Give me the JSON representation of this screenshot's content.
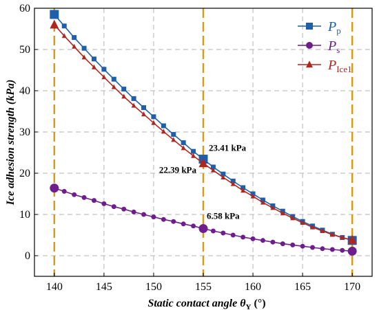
{
  "chart_data": {
    "type": "line",
    "xlabel": "Static contact angle θY (°)",
    "xlabel_parts": {
      "prefix": "Static contact angle ",
      "theta": "θ",
      "sub": "Y",
      "suffix": " (°)"
    },
    "ylabel": "Ice adhesion strength (kPa)",
    "xlim": [
      138,
      172
    ],
    "ylim": [
      -5,
      60
    ],
    "xticks": [
      140,
      145,
      150,
      155,
      160,
      165,
      170
    ],
    "yticks": [
      0,
      10,
      20,
      30,
      40,
      50,
      60
    ],
    "vlines": [
      140,
      155,
      170
    ],
    "grid": true,
    "legend_position": "top-right",
    "x": [
      140,
      141,
      142,
      143,
      144,
      145,
      146,
      147,
      148,
      149,
      150,
      151,
      152,
      153,
      154,
      155,
      156,
      157,
      158,
      159,
      160,
      161,
      162,
      163,
      164,
      165,
      166,
      167,
      168,
      169,
      170
    ],
    "series": [
      {
        "name": "Pp",
        "name_main": "P",
        "name_sub": "p",
        "color": "#1f5ea8",
        "marker": "square",
        "values": [
          58.5,
          55.7,
          52.9,
          50.3,
          47.7,
          45.2,
          42.8,
          40.4,
          38.1,
          35.9,
          33.7,
          31.5,
          29.4,
          27.4,
          25.3,
          23.41,
          21.5,
          19.8,
          18.1,
          16.5,
          15.0,
          13.5,
          12.1,
          10.8,
          9.5,
          8.3,
          7.2,
          6.2,
          5.2,
          4.4,
          3.7
        ]
      },
      {
        "name": "Ps",
        "name_main": "P",
        "name_sub": "s",
        "color": "#6e1e8c",
        "marker": "circle",
        "values": [
          16.4,
          15.6,
          14.8,
          14.1,
          13.4,
          12.6,
          11.9,
          11.3,
          10.6,
          10.0,
          9.4,
          8.8,
          8.3,
          7.7,
          7.2,
          6.58,
          6.0,
          5.5,
          5.0,
          4.5,
          4.1,
          3.7,
          3.3,
          2.9,
          2.6,
          2.3,
          2.0,
          1.7,
          1.5,
          1.3,
          1.1
        ]
      },
      {
        "name": "PIce1",
        "name_main": "P",
        "name_sub": "Ice1",
        "color": "#b0261e",
        "marker": "triangle",
        "values": [
          56.0,
          53.3,
          50.7,
          48.1,
          45.7,
          43.3,
          40.9,
          38.6,
          36.4,
          34.3,
          32.2,
          30.1,
          28.1,
          26.1,
          24.2,
          22.39,
          20.7,
          19.0,
          17.4,
          15.8,
          14.4,
          12.9,
          11.6,
          10.3,
          9.1,
          8.0,
          6.9,
          6.0,
          5.1,
          4.4,
          3.8
        ]
      }
    ],
    "annotations": [
      {
        "text": "23.41 kPa",
        "x": 155,
        "y": 23.41
      },
      {
        "text": "22.39 kPa",
        "x": 155,
        "y": 22.39
      },
      {
        "text": "6.58 kPa",
        "x": 155,
        "y": 6.58
      }
    ]
  }
}
